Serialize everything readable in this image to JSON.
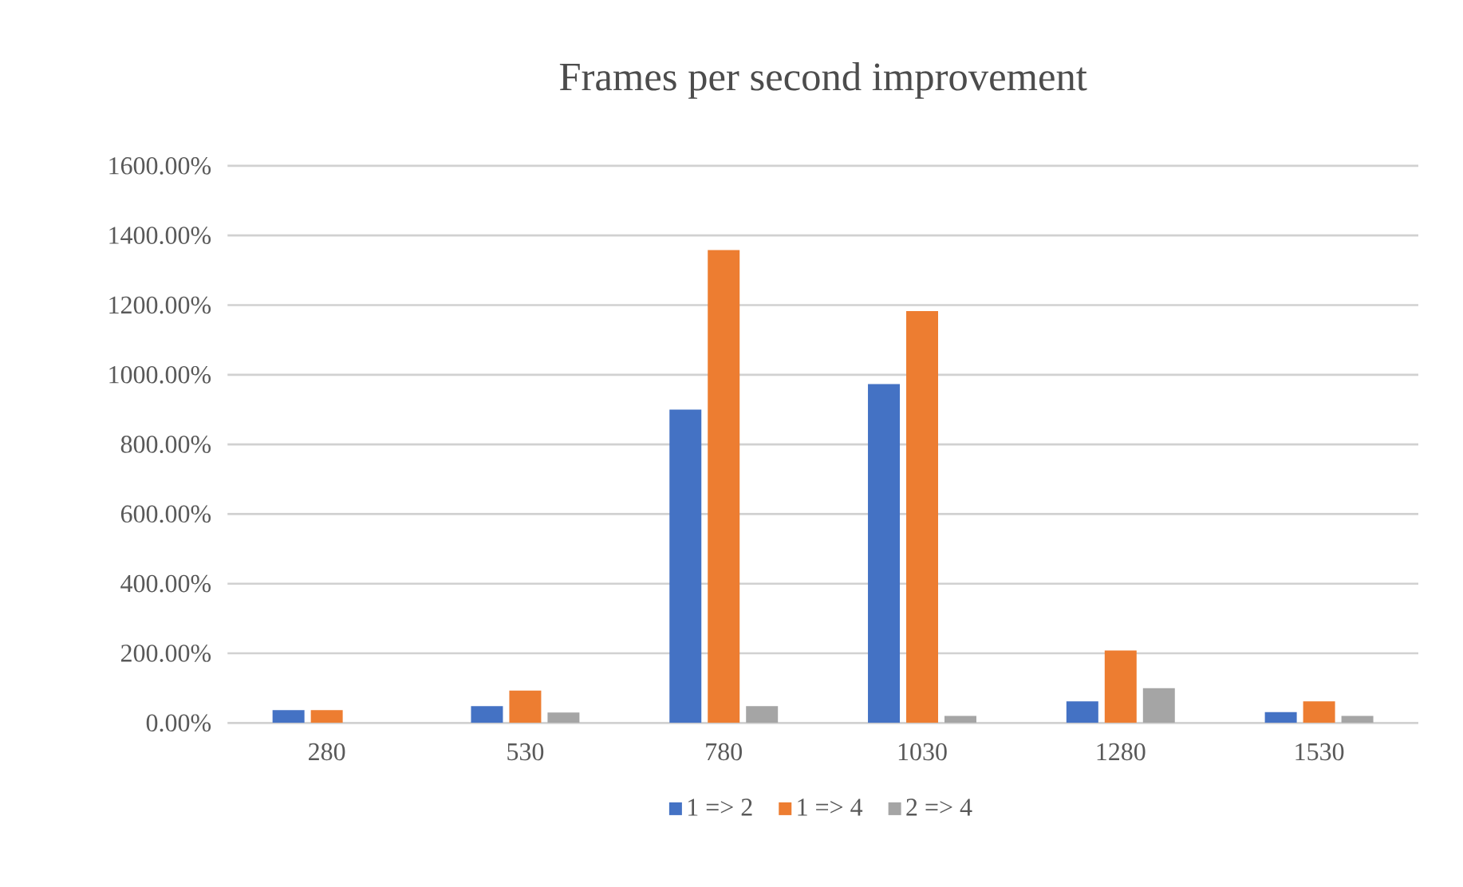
{
  "chart_data": {
    "type": "bar",
    "title": "Frames per second improvement",
    "categories": [
      "280",
      "530",
      "780",
      "1030",
      "1280",
      "1530"
    ],
    "series": [
      {
        "name": "1 => 2",
        "color": "#4472c4",
        "values": [
          37,
          48,
          900,
          973,
          62,
          31
        ]
      },
      {
        "name": "1 => 4",
        "color": "#ed7d31",
        "values": [
          37,
          93,
          1358,
          1183,
          208,
          62
        ]
      },
      {
        "name": "2 => 4",
        "color": "#a5a5a5",
        "values": [
          0,
          30,
          48,
          20,
          100,
          20
        ]
      }
    ],
    "ylim": [
      0,
      1600
    ],
    "yticks": [
      {
        "value": 0,
        "label": "0.00%"
      },
      {
        "value": 200,
        "label": "200.00%"
      },
      {
        "value": 400,
        "label": "400.00%"
      },
      {
        "value": 600,
        "label": "600.00%"
      },
      {
        "value": 800,
        "label": "800.00%"
      },
      {
        "value": 1000,
        "label": "1000.00%"
      },
      {
        "value": 1200,
        "label": "1200.00%"
      },
      {
        "value": 1400,
        "label": "1400.00%"
      },
      {
        "value": 1600,
        "label": "1600.00%"
      }
    ],
    "grid": "y",
    "legend": "bottom"
  }
}
